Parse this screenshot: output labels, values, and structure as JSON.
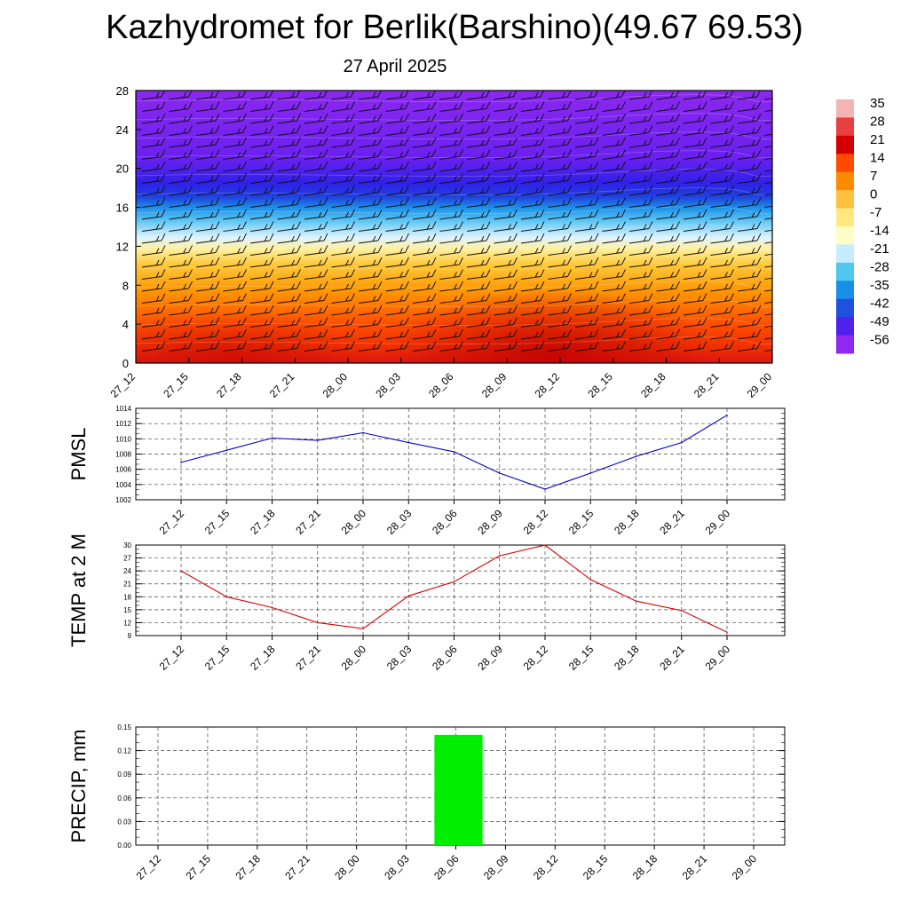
{
  "title": "Kazhydromet for Berlik(Barshino)(49.67 69.53)",
  "date": "27 April 2025",
  "colors": {
    "pmsl_line": "#0000cc",
    "temp_line": "#dd0000",
    "precip_bar": "#00ee00",
    "grid": "#555555"
  },
  "chart_data": [
    {
      "type": "heatmap",
      "name": "upper-air-temperature-cross-section",
      "x_ticks": [
        "27_12",
        "27_15",
        "27_18",
        "27_21",
        "28_00",
        "28_03",
        "28_06",
        "28_09",
        "28_12",
        "28_15",
        "28_18",
        "28_21",
        "29_00"
      ],
      "y_ticks": [
        0,
        4,
        8,
        12,
        16,
        20,
        24,
        28
      ],
      "ylim": [
        0,
        28
      ],
      "colorbar_labels": [
        "35",
        "28",
        "21",
        "14",
        "7",
        "0",
        "-7",
        "-14",
        "-21",
        "-28",
        "-35",
        "-42",
        "-49",
        "-56"
      ],
      "colorbar_colors": [
        "#f4b4b4",
        "#e84040",
        "#d40000",
        "#ff4a00",
        "#ff8a00",
        "#ffc040",
        "#ffe880",
        "#fffcc8",
        "#c8ecff",
        "#50c8f0",
        "#1890e8",
        "#2050e0",
        "#5020ec",
        "#9028f0"
      ],
      "wind_barbs": true
    },
    {
      "type": "line",
      "ylabel": "PMSL",
      "ylim": [
        1002,
        1014
      ],
      "y_ticks": [
        "1014",
        "1012",
        "1010",
        "1008",
        "1006",
        "1004",
        "1002"
      ],
      "categories": [
        "27_12",
        "27_15",
        "27_18",
        "27_21",
        "28_00",
        "28_03",
        "28_06",
        "28_09",
        "28_12",
        "28_15",
        "28_18",
        "28_21",
        "29_00"
      ],
      "values": [
        1006.9,
        1008.5,
        1010.1,
        1009.8,
        1010.8,
        1009.5,
        1008.3,
        1005.5,
        1003.4,
        1005.5,
        1007.7,
        1009.5,
        1013.1
      ],
      "grid": true
    },
    {
      "type": "line",
      "ylabel": "TEMP at 2 M",
      "ylim": [
        9,
        30
      ],
      "y_ticks": [
        "30",
        "27",
        "24",
        "21",
        "18",
        "15",
        "12",
        "9"
      ],
      "categories": [
        "27_12",
        "27_15",
        "27_18",
        "27_21",
        "28_00",
        "28_03",
        "28_06",
        "28_09",
        "28_12",
        "28_15",
        "28_18",
        "28_21",
        "29_00"
      ],
      "values": [
        24,
        18,
        15.5,
        12,
        10.6,
        18.2,
        21.5,
        27.5,
        30,
        22,
        17,
        14.8,
        9.8
      ],
      "grid": true
    },
    {
      "type": "bar",
      "ylabel": "PRECIP, mm",
      "ylim": [
        0,
        0.15
      ],
      "y_ticks": [
        "0.15",
        "0.12",
        "0.09",
        "0.06",
        "0.03",
        "0.00"
      ],
      "categories": [
        "27_12",
        "27_15",
        "27_18",
        "27_21",
        "28_00",
        "28_03",
        "28_06",
        "28_09",
        "28_12",
        "28_15",
        "28_18",
        "28_21",
        "29_00"
      ],
      "values": [
        0,
        0,
        0,
        0,
        0,
        0,
        0.14,
        0,
        0,
        0,
        0,
        0,
        0
      ],
      "grid": true
    }
  ]
}
